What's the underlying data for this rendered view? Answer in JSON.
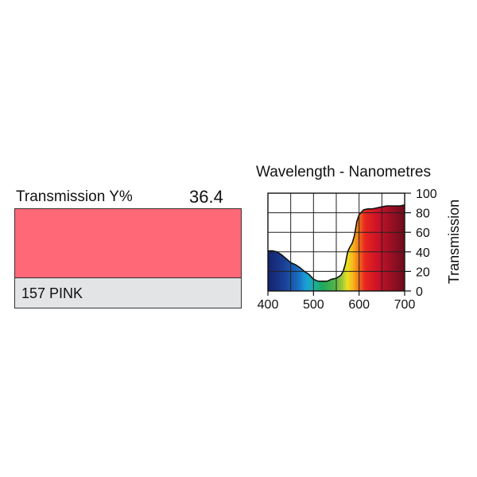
{
  "filter": {
    "transmission_label": "Transmission Y%",
    "transmission_value": "36.4",
    "name": "157 PINK",
    "swatch_color": "#ff6876",
    "name_box_color": "#e3e4e6"
  },
  "chart_data": {
    "type": "area",
    "title": "Wavelength - Nanometres",
    "xlabel": "",
    "ylabel": "Transmission",
    "xlim": [
      400,
      700
    ],
    "ylim": [
      0,
      100
    ],
    "x_ticks": [
      "400",
      "500",
      "600",
      "700"
    ],
    "y_ticks": [
      "0",
      "20",
      "40",
      "60",
      "80",
      "100"
    ],
    "grid": true,
    "series": [
      {
        "x": [
          400,
          410,
          420,
          430,
          440,
          450,
          460,
          470,
          480,
          490,
          500,
          510,
          520,
          530,
          540,
          550,
          560,
          565,
          570,
          575,
          580,
          585,
          590,
          595,
          600,
          610,
          620,
          630,
          640,
          650,
          660,
          670,
          680,
          690,
          700
        ],
        "values": [
          41,
          41,
          40,
          37,
          33,
          29,
          27,
          24,
          20,
          17,
          12,
          10,
          10,
          10,
          12,
          13,
          16,
          20,
          28,
          40,
          45,
          49,
          57,
          71,
          78,
          83,
          84,
          84,
          85,
          86,
          87,
          87,
          87,
          87,
          88
        ]
      }
    ]
  }
}
